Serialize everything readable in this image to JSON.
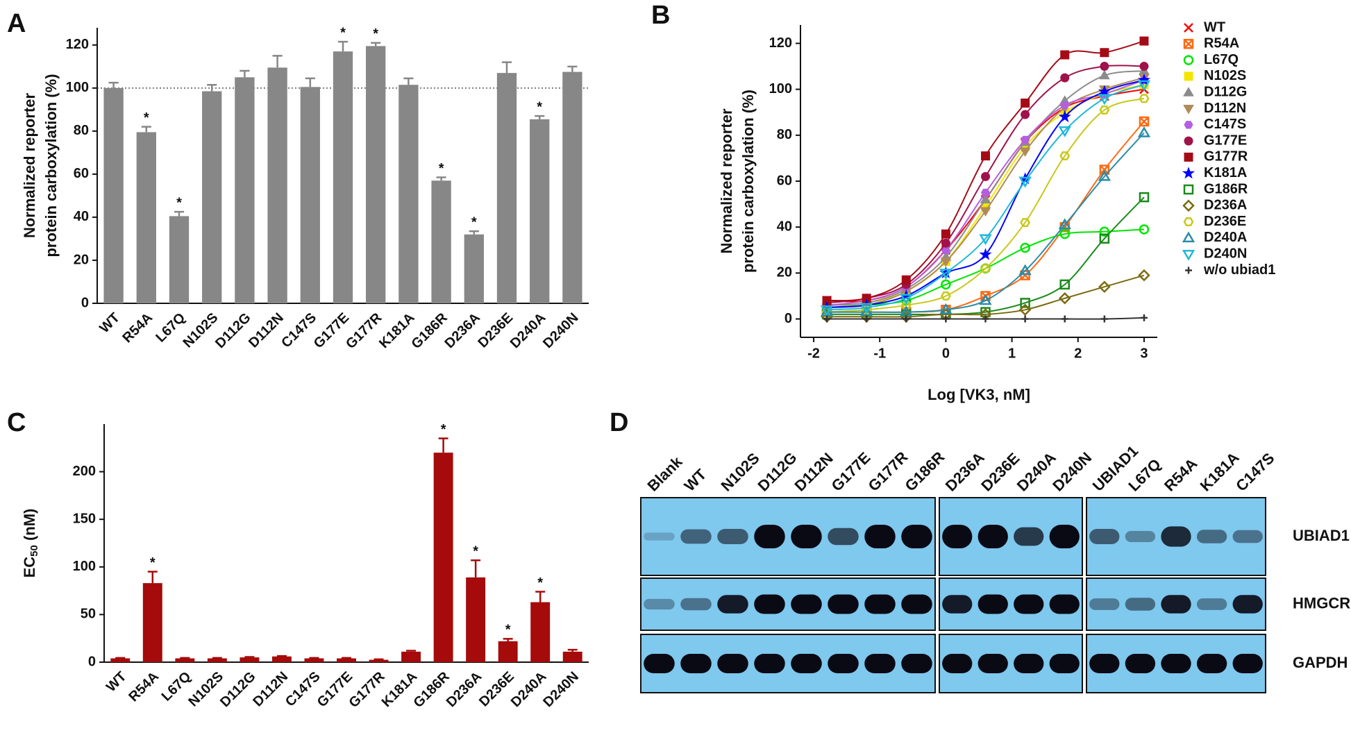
{
  "chart_data": [
    {
      "type": "bar",
      "panel_label": "A",
      "ylabel": [
        "Normalized reporter",
        "protein carboxylation (%)"
      ],
      "categories": [
        "WT",
        "R54A",
        "L67Q",
        "N102S",
        "D112G",
        "D112N",
        "C147S",
        "G177E",
        "G177R",
        "K181A",
        "G186R",
        "D236A",
        "D236E",
        "D240A",
        "D240N"
      ],
      "values": [
        100,
        79.5,
        40.5,
        98.5,
        105,
        109.5,
        100.5,
        117,
        119.5,
        101.5,
        57,
        32,
        107,
        85.5,
        107.5
      ],
      "errors": [
        2.5,
        2.5,
        2,
        3,
        3,
        5.5,
        4,
        4.5,
        1.5,
        3,
        1.5,
        1.5,
        5,
        1.5,
        2.5
      ],
      "significance_marks": [
        null,
        "*",
        "*",
        null,
        null,
        null,
        null,
        "*",
        "*",
        null,
        "*",
        "*",
        null,
        "*",
        null
      ],
      "reference_line": 100,
      "color": "#878787",
      "ylim": [
        0,
        128
      ],
      "yticks": [
        0,
        20,
        40,
        60,
        80,
        100,
        120
      ]
    },
    {
      "type": "scatter",
      "panel_label": "B",
      "line_style": "smooth",
      "ylabel": [
        "Normalized reporter",
        "protein carboxylation (%)"
      ],
      "xlabel": "Log [VK3, nM]",
      "x": [
        -1.8,
        -1.2,
        -0.6,
        0,
        0.6,
        1.2,
        1.8,
        2.4,
        3.0
      ],
      "series": [
        {
          "name": "WT",
          "color": "#ff0000",
          "marker": "x",
          "values": [
            8,
            8,
            14,
            30,
            52,
            77,
            92,
            97,
            100
          ]
        },
        {
          "name": "R54A",
          "color": "#ff6a13",
          "marker": "square-x",
          "values": [
            3,
            3,
            3,
            4,
            10,
            19,
            40,
            65,
            86
          ]
        },
        {
          "name": "L67Q",
          "color": "#00e600",
          "marker": "circle-open",
          "values": [
            5,
            6,
            8,
            15,
            22,
            31,
            37,
            38,
            39
          ]
        },
        {
          "name": "N102S",
          "color": "#f2e600",
          "marker": "square",
          "values": [
            6,
            7,
            12,
            25,
            49,
            75,
            90,
            98,
            102
          ]
        },
        {
          "name": "D112G",
          "color": "#8c8c8c",
          "marker": "triangle",
          "values": [
            6,
            7,
            13,
            27,
            52,
            77,
            95,
            106,
            108
          ]
        },
        {
          "name": "D112N",
          "color": "#b08b57",
          "marker": "triangle-down",
          "values": [
            5,
            6,
            12,
            25,
            47,
            73,
            92,
            100,
            105
          ]
        },
        {
          "name": "C147S",
          "color": "#b45ee0",
          "marker": "hexagon",
          "values": [
            6,
            8,
            14,
            30,
            55,
            78,
            93,
            98,
            104
          ]
        },
        {
          "name": "G177E",
          "color": "#a0124a",
          "marker": "circle",
          "values": [
            7,
            9,
            15,
            33,
            62,
            89,
            105,
            110,
            110
          ]
        },
        {
          "name": "G177R",
          "color": "#a50b16",
          "marker": "square",
          "values": [
            8,
            9,
            17,
            37,
            71,
            94,
            115,
            116,
            121
          ]
        },
        {
          "name": "K181A",
          "color": "#0000ff",
          "marker": "star",
          "values": [
            5,
            6,
            10,
            20,
            28,
            61,
            88,
            99,
            104
          ]
        },
        {
          "name": "G186R",
          "color": "#1a8a1a",
          "marker": "square-open",
          "values": [
            2,
            2,
            2,
            2,
            3,
            7,
            15,
            35,
            53
          ]
        },
        {
          "name": "D236A",
          "color": "#7a6a10",
          "marker": "diamond-open",
          "values": [
            1,
            1,
            1,
            2,
            2,
            4,
            9,
            14,
            19
          ]
        },
        {
          "name": "D236E",
          "color": "#c8c81a",
          "marker": "hexagon-open",
          "values": [
            3,
            4,
            6,
            10,
            22,
            42,
            71,
            91,
            96
          ]
        },
        {
          "name": "D240A",
          "color": "#2a8ca8",
          "marker": "triangle-open",
          "values": [
            3,
            3,
            3,
            4,
            8,
            21,
            41,
            62,
            81
          ]
        },
        {
          "name": "D240N",
          "color": "#20b8d8",
          "marker": "triangle-down-open",
          "values": [
            4,
            5,
            9,
            20,
            35,
            60,
            82,
            96,
            102
          ]
        },
        {
          "name": "w/o ubiad1",
          "color": "#333333",
          "marker": "plus",
          "values": [
            0,
            0,
            0,
            0,
            0,
            0,
            0,
            0,
            0.5
          ]
        }
      ],
      "xlim": [
        -2.2,
        3.2
      ],
      "xticks": [
        -2,
        -1,
        0,
        1,
        2,
        3
      ],
      "ylim": [
        -8,
        128
      ],
      "yticks": [
        0,
        20,
        40,
        60,
        80,
        100,
        120
      ]
    },
    {
      "type": "bar",
      "panel_label": "C",
      "ylabel": {
        "text": "EC",
        "subscript": "50",
        "suffix": " (nM)"
      },
      "categories": [
        "WT",
        "R54A",
        "L67Q",
        "N102S",
        "D112G",
        "D112N",
        "C147S",
        "G177E",
        "G177R",
        "K181A",
        "G186R",
        "D236A",
        "D236E",
        "D240A",
        "D240N"
      ],
      "values": [
        4,
        83,
        4,
        4,
        5,
        6,
        4,
        4,
        2.5,
        11,
        220,
        89,
        22,
        63,
        11
      ],
      "errors": [
        0.5,
        12,
        0.5,
        0.5,
        0.5,
        0.5,
        0.5,
        0.5,
        0.5,
        1,
        15,
        18,
        2.5,
        11,
        2
      ],
      "significance_marks": [
        null,
        "*",
        null,
        null,
        null,
        null,
        null,
        null,
        null,
        null,
        "*",
        "*",
        "*",
        "*",
        null
      ],
      "color": "#a50b0b",
      "ylim": [
        0,
        250
      ],
      "yticks": [
        0,
        50,
        100,
        150,
        200
      ]
    }
  ],
  "blot": {
    "panel_label": "D",
    "lane_groups": [
      [
        "Blank",
        "WT",
        "N102S",
        "D112G",
        "D112N",
        "G177E",
        "G177R",
        "G186R"
      ],
      [
        "D236A",
        "D236E",
        "D240A",
        "D240N"
      ],
      [
        "UBIAD1",
        "L67Q",
        "R54A",
        "K181A",
        "C147S"
      ]
    ],
    "rows": [
      "UBIAD1",
      "HMGCR",
      "GAPDH"
    ]
  }
}
